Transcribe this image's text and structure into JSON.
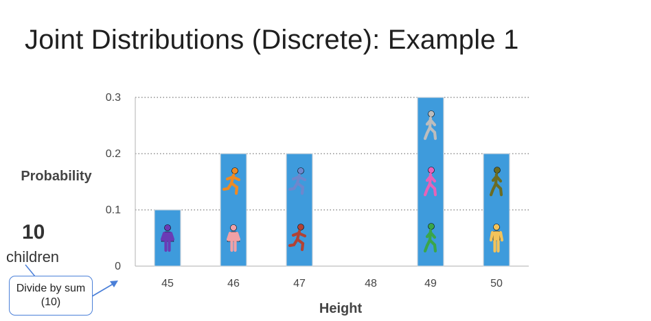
{
  "slide": {
    "title": "Joint Distributions (Discrete): Example 1",
    "count_number": "10",
    "count_word": "children",
    "callout_text": "Divide by sum (10)"
  },
  "colors": {
    "bar": "#3e9bdc",
    "grid": "#555555",
    "axis": "#bdbdbd",
    "callout_border": "#4a7fd8"
  },
  "chart_data": {
    "type": "bar",
    "xlabel": "Height",
    "ylabel": "Probability",
    "categories": [
      "45",
      "46",
      "47",
      "48",
      "49",
      "50"
    ],
    "values": [
      0.1,
      0.2,
      0.2,
      0.0,
      0.3,
      0.2
    ],
    "yticks": [
      "0",
      "0.1",
      "0.2",
      "0.3"
    ],
    "ylim": [
      0,
      0.3
    ],
    "grid": true,
    "icons": [
      [
        {
          "name": "girl-standing-icon",
          "color": "#6a3bb5"
        }
      ],
      [
        {
          "name": "runner-icon",
          "color": "#ee8a23"
        },
        {
          "name": "girl-standing-icon",
          "color": "#f1a1a6"
        }
      ],
      [
        {
          "name": "runner-icon",
          "color": "#6d87cd"
        },
        {
          "name": "runner-icon",
          "color": "#b24234"
        }
      ],
      [],
      [
        {
          "name": "walker-icon",
          "color": "#bdbdbd"
        },
        {
          "name": "walker-icon",
          "color": "#e663b8"
        },
        {
          "name": "walker-icon",
          "color": "#3aa64a"
        }
      ],
      [
        {
          "name": "walker-icon",
          "color": "#6b6c23"
        },
        {
          "name": "person-standing-icon",
          "color": "#f3c35a"
        }
      ]
    ]
  }
}
